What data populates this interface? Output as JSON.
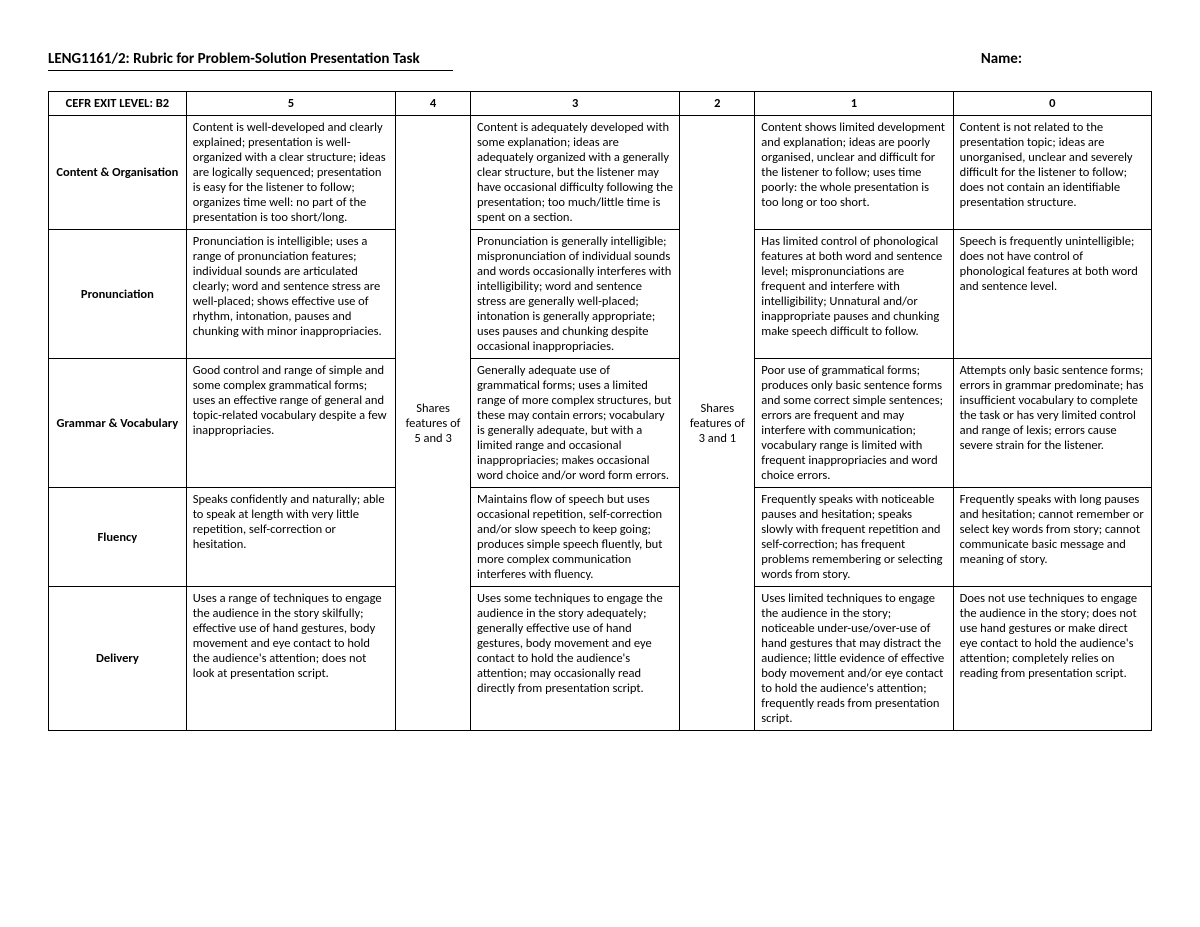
{
  "header": {
    "title": "LENG1161/2: Rubric for Problem-Solution Presentation Task",
    "name_label": "Name:"
  },
  "table": {
    "head_label": "CEFR EXIT LEVEL: B2",
    "cols": [
      "5",
      "4",
      "3",
      "2",
      "1",
      "0"
    ],
    "shares_4": "Shares features of 5 and 3",
    "shares_2": "Shares features of 3 and 1",
    "rows": [
      {
        "label": "Content & Organisation",
        "c5": "Content is well-developed and clearly explained; presentation is well-organized with a clear structure; ideas are logically sequenced; presentation is easy for the listener to follow; organizes time well: no part of the presentation is too short/long.",
        "c3": "Content is adequately developed with some explanation; ideas are adequately organized with a generally clear structure, but the listener may have occasional difficulty following the presentation; too much/little time is spent on a section.",
        "c1": "Content shows limited development and explanation; ideas are poorly organised, unclear and difficult for the listener to follow; uses time poorly: the whole presentation is too long or too short.",
        "c0": "Content is not related to the presentation topic; ideas are unorganised, unclear and severely difficult for the listener to follow; does not contain an identifiable presentation structure."
      },
      {
        "label": "Pronunciation",
        "c5": "Pronunciation is intelligible; uses a range of pronunciation features; individual sounds are articulated clearly; word and sentence stress are well-placed; shows effective use of rhythm, intonation, pauses and chunking with minor inappropriacies.",
        "c3": "Pronunciation is generally intelligible; mispronunciation of individual sounds and words occasionally interferes with intelligibility; word and sentence stress are generally well-placed; intonation is generally appropriate; uses pauses and chunking despite occasional inappropriacies.",
        "c1": "Has limited control of phonological features at both word and sentence level; mispronunciations are frequent and interfere with intelligibility; Unnatural and/or inappropriate pauses and chunking make speech difficult to follow.",
        "c0": "Speech is frequently unintelligible; does not have control of phonological features at both word and sentence level."
      },
      {
        "label": "Grammar & Vocabulary",
        "c5": "Good control and range of simple and some complex grammatical forms; uses an effective range of general and topic-related vocabulary despite a few inappropriacies.",
        "c3": "Generally adequate use of grammatical forms; uses a limited range of more complex structures, but these may contain errors; vocabulary is generally adequate, but with a limited range and occasional inappropriacies; makes occasional word choice and/or word form errors.",
        "c1": "Poor use of grammatical forms; produces only basic sentence forms and some correct simple sentences; errors are frequent and may interfere with communication; vocabulary range is limited with frequent inappropriacies and word choice errors.",
        "c0": "Attempts only basic sentence forms; errors in grammar predominate; has insufficient vocabulary to complete the task or has very limited control and range of lexis; errors cause severe strain for the listener."
      },
      {
        "label": "Fluency",
        "c5": "Speaks confidently and naturally; able to speak at length with very little repetition, self-correction or hesitation.",
        "c3": "Maintains flow of speech but uses occasional repetition, self-correction and/or slow speech to keep going; produces simple speech fluently, but more complex communication interferes with fluency.",
        "c1": "Frequently speaks with noticeable pauses and hesitation; speaks slowly with frequent repetition and self-correction; has frequent problems remembering or selecting words from story.",
        "c0": "Frequently speaks with long pauses and hesitation; cannot remember or select key words from story; cannot communicate basic message and meaning of story."
      },
      {
        "label": "Delivery",
        "c5": "Uses a range of techniques to engage the audience in the story skilfully; effective use of hand gestures, body movement and eye contact to hold the audience's attention; does not look at presentation script.",
        "c3": "Uses some techniques to engage the audience in the story adequately; generally effective use of hand gestures, body movement and eye contact to hold the audience's attention; may occasionally read directly from presentation script.",
        "c1": "Uses limited techniques to engage the audience in the story; noticeable under-use/over-use of hand gestures that may distract the audience; little evidence of effective body movement and/or eye contact to hold the audience's attention; frequently reads from presentation script.",
        "c0": "Does not use techniques to engage the audience in the story; does not use hand gestures or make direct eye contact to hold the audience's attention; completely relies on reading from presentation script."
      }
    ]
  }
}
